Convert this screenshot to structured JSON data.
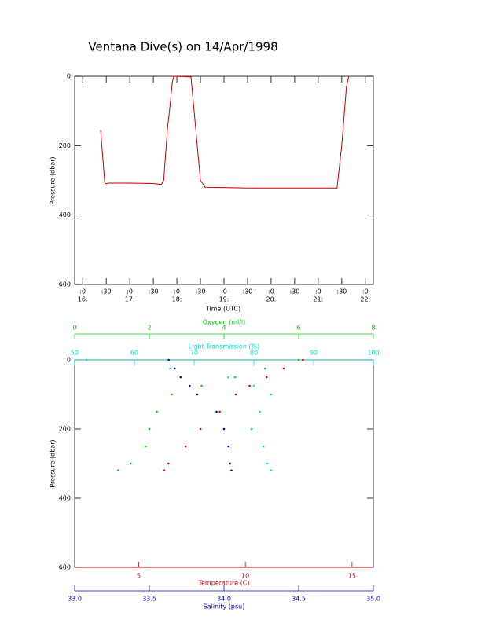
{
  "chart_data": [
    {
      "type": "line",
      "title": "Ventana Dive(s) on 14/Apr/1998",
      "xlabel": "Time (UTC)",
      "ylabel": "Pressure (dbar)",
      "xlim": [
        15.83,
        22.17
      ],
      "ylim": [
        0,
        600
      ],
      "yticks": [
        0,
        200,
        400,
        600
      ],
      "xticks": [
        {
          "value": 16,
          "label": ":0"
        },
        {
          "value": 16.5,
          "label": ":30"
        },
        {
          "value": 17,
          "label": ":0"
        },
        {
          "value": 17.5,
          "label": ":30"
        },
        {
          "value": 18,
          "label": ":0"
        },
        {
          "value": 18.5,
          "label": ":30"
        },
        {
          "value": 19,
          "label": ":0"
        },
        {
          "value": 19.5,
          "label": ":30"
        },
        {
          "value": 20,
          "label": ":0"
        },
        {
          "value": 20.5,
          "label": ":30"
        },
        {
          "value": 21,
          "label": ":0"
        },
        {
          "value": 21.5,
          "label": ":30"
        },
        {
          "value": 22,
          "label": ":0"
        }
      ],
      "hour_labels": [
        {
          "value": 16,
          "label": "16:"
        },
        {
          "value": 17,
          "label": "17:"
        },
        {
          "value": 18,
          "label": "18:"
        },
        {
          "value": 19,
          "label": "19:"
        },
        {
          "value": 20,
          "label": "20:"
        },
        {
          "value": 21,
          "label": "21:"
        },
        {
          "value": 22,
          "label": "22:"
        }
      ],
      "color": "#cc0000",
      "x": [
        16.38,
        16.47,
        16.55,
        17.0,
        17.5,
        17.67,
        17.72,
        17.8,
        17.85,
        17.9,
        17.93,
        18.3,
        18.4,
        18.5,
        18.6,
        19.5,
        20.5,
        21.4,
        21.5,
        21.6,
        21.65
      ],
      "values": [
        155,
        310,
        308,
        308,
        309,
        312,
        300,
        150,
        90,
        20,
        0,
        2,
        150,
        300,
        320,
        322,
        322,
        322,
        200,
        30,
        0
      ]
    },
    {
      "type": "scatter",
      "ylabel": "Pressure (dbar)",
      "ylim": [
        0,
        600
      ],
      "yticks": [
        0,
        200,
        400,
        600
      ],
      "axes": [
        {
          "label": "Oxygen (ml/l)",
          "color": "#00cc00",
          "xlim": [
            0,
            8
          ],
          "xticks": [
            0,
            2,
            4,
            6,
            8
          ]
        },
        {
          "label": "Light Transmission (%)",
          "color": "#00dddd",
          "xlim": [
            50,
            100
          ],
          "xticks": [
            50,
            60,
            70,
            80,
            90,
            100
          ]
        },
        {
          "label": "Temperature (C)",
          "color": "#dd0000",
          "xlim": [
            2,
            16
          ],
          "xticks": [
            5,
            10,
            15
          ]
        },
        {
          "label": "Salinity (psu)",
          "color": "#0000cc",
          "xlim": [
            33,
            35
          ],
          "xticks": [
            {
              "value": 33,
              "label": "33.0"
            },
            33.5,
            {
              "value": 34,
              "label": "34.0"
            },
            34.5,
            {
              "value": 35,
              "label": "35.0"
            }
          ]
        }
      ],
      "y": [
        0,
        25,
        50,
        75,
        100,
        150,
        200,
        250,
        300,
        320
      ],
      "series": [
        {
          "axis": 0,
          "color": "#00cc00",
          "values": [
            6.0,
            5.1,
            4.3,
            3.4,
            2.6,
            2.2,
            2.0,
            1.9,
            1.5,
            1.16
          ]
        },
        {
          "axis": 1,
          "color": "#00dddd",
          "values": [
            52,
            66,
            75.7,
            80,
            82.9,
            81,
            79.6,
            81.6,
            82.2,
            82.9
          ]
        },
        {
          "axis": 2,
          "color": "#dd0000",
          "values": [
            12.7,
            11.8,
            11.0,
            10.2,
            9.55,
            8.8,
            7.9,
            7.2,
            6.4,
            6.2
          ]
        },
        {
          "axis": 3,
          "color": "#0000cc",
          "values": [
            33.63,
            33.67,
            33.71,
            33.77,
            33.82,
            33.95,
            34.0,
            34.03,
            34.04,
            34.05
          ]
        }
      ]
    }
  ]
}
